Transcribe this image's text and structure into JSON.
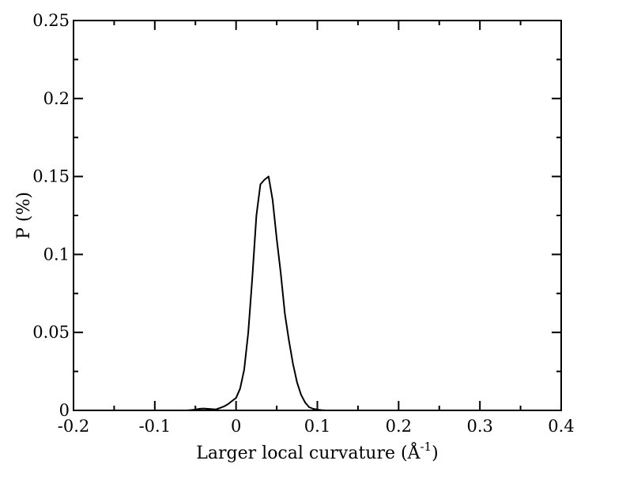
{
  "chart_data": {
    "type": "line",
    "title": "",
    "xlabel": "Larger local curvature (Å",
    "xlabel_superscript": "-1",
    "xlabel_suffix": ")",
    "ylabel": "P (%)",
    "xlim": [
      -0.2,
      0.4
    ],
    "ylim": [
      0,
      0.25
    ],
    "x_ticks": [
      -0.2,
      -0.1,
      0,
      0.1,
      0.2,
      0.3,
      0.4
    ],
    "x_tick_labels": [
      "-0.2",
      "-0.1",
      "0",
      "0.1",
      "0.2",
      "0.3",
      "0.4"
    ],
    "x_minor_ticks": [
      -0.15,
      -0.05,
      0.05,
      0.15,
      0.25,
      0.35
    ],
    "y_ticks": [
      0,
      0.05,
      0.1,
      0.15,
      0.2,
      0.25
    ],
    "y_tick_labels": [
      "0",
      "0.05",
      "0.1",
      "0.15",
      "0.2",
      "0.25"
    ],
    "y_minor_ticks": [
      0.025,
      0.075,
      0.125,
      0.175,
      0.225
    ],
    "grid": false,
    "legend": "none",
    "series": [
      {
        "color": "#000000",
        "x": [
          -0.11,
          -0.07,
          -0.06,
          -0.05,
          -0.045,
          -0.04,
          -0.035,
          -0.03,
          -0.025,
          -0.02,
          -0.015,
          -0.01,
          -0.005,
          0.0,
          0.005,
          0.01,
          0.015,
          0.02,
          0.025,
          0.03,
          0.035,
          0.04,
          0.045,
          0.05,
          0.055,
          0.06,
          0.065,
          0.07,
          0.075,
          0.08,
          0.085,
          0.09,
          0.095,
          0.1,
          0.105,
          0.11,
          0.12,
          0.13,
          0.15,
          0.19,
          0.28,
          0.29,
          0.355,
          0.36
        ],
        "y": [
          0.0,
          0.0,
          0.0,
          0.0005,
          0.001,
          0.0012,
          0.001,
          0.0008,
          0.0006,
          0.0015,
          0.0025,
          0.004,
          0.006,
          0.008,
          0.014,
          0.026,
          0.05,
          0.085,
          0.125,
          0.145,
          0.148,
          0.15,
          0.135,
          0.11,
          0.088,
          0.062,
          0.045,
          0.03,
          0.018,
          0.01,
          0.005,
          0.002,
          0.001,
          0.0005,
          0.0002,
          0.0,
          0.0,
          0.0,
          0.0,
          0.0,
          0.0,
          0.0,
          0.0,
          0.0
        ]
      }
    ],
    "colors": {
      "axis": "#000000",
      "line": "#000000",
      "background": "#ffffff"
    }
  }
}
